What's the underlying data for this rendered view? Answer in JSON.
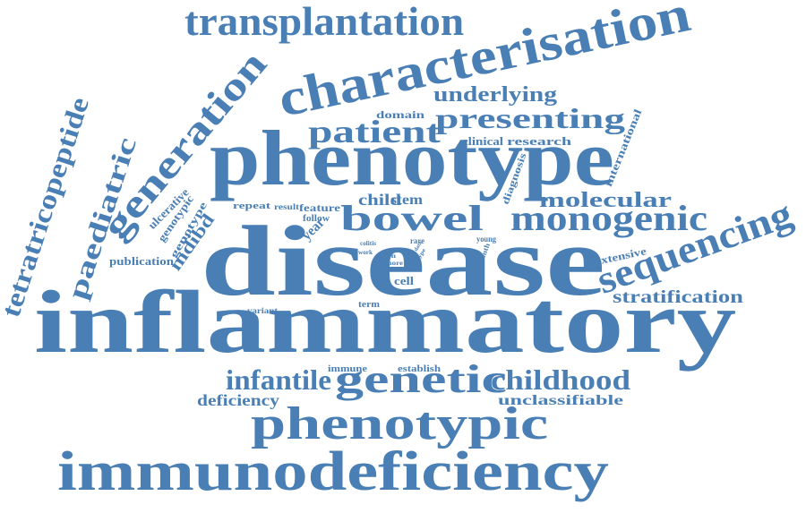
{
  "color": "#4a7fb5",
  "words": [
    {
      "text": "transplantation"
    },
    {
      "text": "characterisation"
    },
    {
      "text": "generation"
    },
    {
      "text": "underlying"
    },
    {
      "text": "domain"
    },
    {
      "text": "presenting"
    },
    {
      "text": "patient"
    },
    {
      "text": "clinical"
    },
    {
      "text": "research"
    },
    {
      "text": "international"
    },
    {
      "text": "tetratricopeptide"
    },
    {
      "text": "paediatric"
    },
    {
      "text": "phenotype"
    },
    {
      "text": "diagnosis"
    },
    {
      "text": "molecular"
    },
    {
      "text": "ulcerative"
    },
    {
      "text": "genotypic"
    },
    {
      "text": "genotype"
    },
    {
      "text": "repeat"
    },
    {
      "text": "result"
    },
    {
      "text": "feature"
    },
    {
      "text": "follow"
    },
    {
      "text": "child"
    },
    {
      "text": "stem"
    },
    {
      "text": "bowel"
    },
    {
      "text": "monogenic"
    },
    {
      "text": "sequencing"
    },
    {
      "text": "mdibd"
    },
    {
      "text": "publication"
    },
    {
      "text": "year"
    },
    {
      "text": "colitis"
    },
    {
      "text": "work"
    },
    {
      "text": "rare"
    },
    {
      "text": "data"
    },
    {
      "text": "on"
    },
    {
      "text": "more"
    },
    {
      "text": "type"
    },
    {
      "text": "young"
    },
    {
      "text": "month"
    },
    {
      "text": "disease"
    },
    {
      "text": "extensive"
    },
    {
      "text": "cell"
    },
    {
      "text": "stratification"
    },
    {
      "text": "variant"
    },
    {
      "text": "term"
    },
    {
      "text": "inflammatory"
    },
    {
      "text": "immune"
    },
    {
      "text": "establish"
    },
    {
      "text": "infantile"
    },
    {
      "text": "genetic"
    },
    {
      "text": "childhood"
    },
    {
      "text": "deficiency"
    },
    {
      "text": "unclassifiable"
    },
    {
      "text": "phenotypic"
    },
    {
      "text": "immunodeficiency"
    }
  ]
}
